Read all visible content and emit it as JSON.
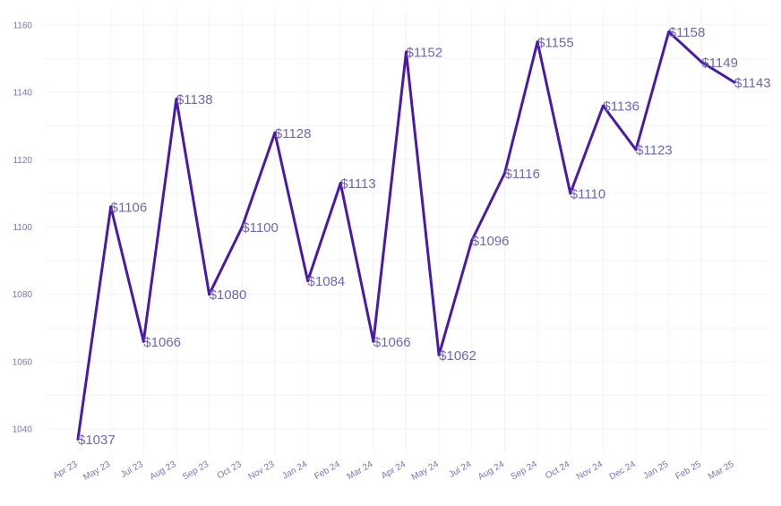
{
  "chart_data": {
    "type": "line",
    "title": "",
    "xlabel": "",
    "ylabel": "",
    "categories": [
      "Apr 23",
      "May 23",
      "Jul 23",
      "Aug 23",
      "Sep 23",
      "Oct 23",
      "Nov 23",
      "Jan 24",
      "Feb 24",
      "Mar 24",
      "Apr 24",
      "May 24",
      "Jul 24",
      "Aug 24",
      "Sep 24",
      "Oct 24",
      "Nov 24",
      "Dec 24",
      "Jan 25",
      "Feb 25",
      "Mar 25"
    ],
    "series": [
      {
        "values": [
          1037,
          1106,
          1066,
          1138,
          1080,
          1100,
          1128,
          1084,
          1113,
          1066,
          1152,
          1062,
          1096,
          1116,
          1155,
          1110,
          1136,
          1123,
          1158,
          1149,
          1143
        ]
      }
    ],
    "data_labels": [
      "$1037",
      "$1106",
      "$1066",
      "$1138",
      "$1080",
      "$1100",
      "$1128",
      "$1084",
      "$1113",
      "$1066",
      "$1152",
      "$1062",
      "$1096",
      "$1116",
      "$1155",
      "$1110",
      "$1136",
      "$1123",
      "$1158",
      "$1149",
      "$1143"
    ],
    "y_ticks": [
      1040,
      1060,
      1080,
      1100,
      1120,
      1140,
      1160
    ],
    "y_tick_labels": [
      "1040",
      "1060",
      "1080",
      "1100",
      "1120",
      "1140",
      "1160"
    ],
    "ylim": [
      1030,
      1164
    ],
    "grid": true,
    "colors": {
      "line": "#4a1aa6",
      "label": "#6f67b0",
      "tick": "#7b72b8",
      "grid": "#f3f3f6"
    }
  }
}
